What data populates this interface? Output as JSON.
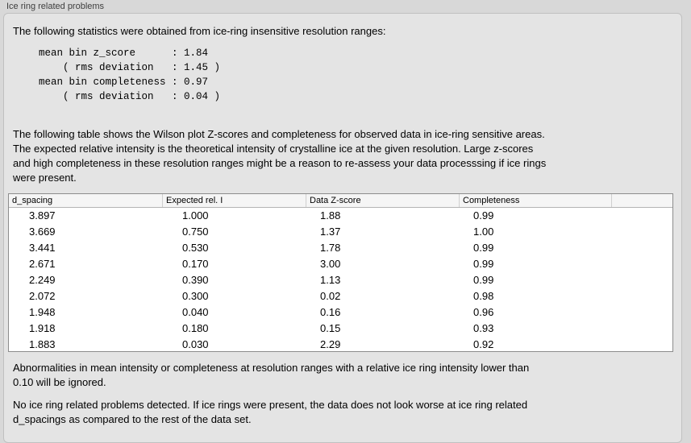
{
  "group": {
    "title": "Ice ring related problems"
  },
  "intro_text": "The following statistics were obtained from ice-ring insensitive resolution ranges:",
  "stats": {
    "lines": [
      "mean bin z_score      : 1.84",
      "    ( rms deviation   : 1.45 )",
      "mean bin completeness : 0.97",
      "    ( rms deviation   : 0.04 )"
    ]
  },
  "wilson_text": "The following table shows the Wilson plot Z-scores and completeness for observed data in ice-ring sensitive areas.\nThe expected relative intensity is the theoretical intensity of crystalline ice at the given resolution. Large z-scores\nand high completeness in these resolution ranges might be a reason to re-assess your data processsing if ice rings\nwere present.",
  "table": {
    "headers": [
      "d_spacing",
      "Expected rel. I",
      "Data Z-score",
      "Completeness",
      ""
    ],
    "rows": [
      [
        "3.897",
        "1.000",
        "1.88",
        "0.99"
      ],
      [
        "3.669",
        "0.750",
        "1.37",
        "1.00"
      ],
      [
        "3.441",
        "0.530",
        "1.78",
        "0.99"
      ],
      [
        "2.671",
        "0.170",
        "3.00",
        "0.99"
      ],
      [
        "2.249",
        "0.390",
        "1.13",
        "0.99"
      ],
      [
        "2.072",
        "0.300",
        "0.02",
        "0.98"
      ],
      [
        "1.948",
        "0.040",
        "0.16",
        "0.96"
      ],
      [
        "1.918",
        "0.180",
        "0.15",
        "0.93"
      ],
      [
        "1.883",
        "0.030",
        "2.29",
        "0.92"
      ]
    ]
  },
  "ignore_text": "Abnormalities in mean intensity or completeness at resolution ranges with a relative ice ring intensity lower than\n0.10 will be ignored.",
  "conclusion_text": "No ice ring related problems detected. If ice rings were present, the data does not look worse at ice ring related\nd_spacings as compared to the rest of the data set.",
  "colors": {
    "outer_background": "#d8d8d8",
    "panel_background": "#e4e4e4",
    "table_border": "#8c8c8c",
    "header_background": "#f5f5f5"
  }
}
